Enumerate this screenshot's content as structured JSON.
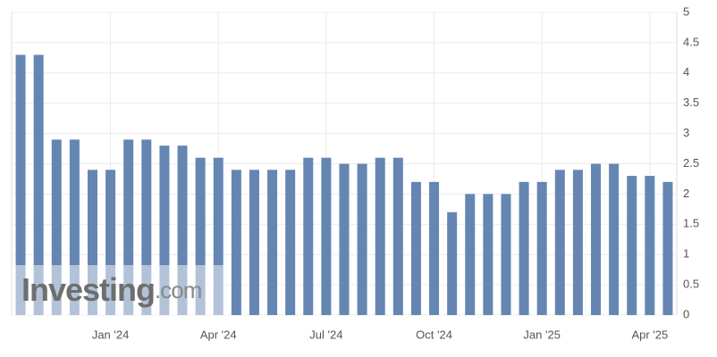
{
  "chart_data": {
    "type": "bar",
    "categories": [
      null,
      null,
      null,
      null,
      null,
      "Jan '24",
      null,
      null,
      null,
      null,
      null,
      "Apr '24",
      null,
      null,
      null,
      null,
      null,
      "Jul '24",
      null,
      null,
      null,
      null,
      null,
      "Oct '24",
      null,
      null,
      null,
      null,
      null,
      "Jan '25",
      null,
      null,
      null,
      null,
      null,
      "Apr '25",
      null
    ],
    "values": [
      4.3,
      4.3,
      2.9,
      2.9,
      2.4,
      2.4,
      2.9,
      2.9,
      2.8,
      2.8,
      2.6,
      2.6,
      2.4,
      2.4,
      2.4,
      2.4,
      2.6,
      2.6,
      2.5,
      2.5,
      2.6,
      2.6,
      2.2,
      2.2,
      1.7,
      2.0,
      2.0,
      2.0,
      2.2,
      2.2,
      2.4,
      2.4,
      2.5,
      2.5,
      2.3,
      2.3,
      2.2
    ],
    "color": "#6586b2",
    "ylim": [
      0,
      5
    ],
    "yticks": [
      0,
      0.5,
      1,
      1.5,
      2,
      2.5,
      3,
      3.5,
      4,
      4.5,
      5
    ],
    "grid": true,
    "watermark": {
      "brand": "Investing",
      "suffix": ".com"
    }
  }
}
